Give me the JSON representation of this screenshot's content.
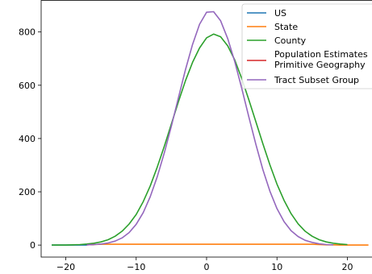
{
  "chart_data": {
    "type": "line",
    "title": "",
    "xlabel": "",
    "ylabel": "",
    "xlim": [
      -23.5,
      23.5
    ],
    "ylim": [
      -45,
      920
    ],
    "xticks": [
      -20,
      -10,
      0,
      10,
      20
    ],
    "yticks": [
      0,
      200,
      400,
      600,
      800
    ],
    "xtick_labels": [
      "−20",
      "−10",
      "0",
      "10",
      "20"
    ],
    "ytick_labels": [
      "0",
      "200",
      "400",
      "600",
      "800"
    ],
    "grid": false,
    "legend_position": "top-right",
    "series": [
      {
        "name": "US",
        "color": "#1f77b4",
        "x": [
          -22,
          -17
        ],
        "y": [
          0,
          0
        ]
      },
      {
        "name": "State",
        "color": "#ff7f0e",
        "x": [
          -17,
          -16,
          -15,
          15,
          16,
          17,
          18,
          19,
          20,
          21,
          22,
          23
        ],
        "y": [
          1,
          2,
          3,
          3,
          2,
          1,
          1,
          0,
          0,
          0,
          0,
          0
        ]
      },
      {
        "name": "County",
        "color": "#2ca02c",
        "x": [
          -22,
          -21,
          -20,
          -19,
          -18,
          -17,
          -16,
          -15,
          -14,
          -13,
          -12,
          -11,
          -10,
          -9,
          -8,
          -7,
          -6,
          -5,
          -4,
          -3,
          -2,
          -1,
          0,
          1,
          2,
          3,
          4,
          5,
          6,
          7,
          8,
          9,
          10,
          11,
          12,
          13,
          14,
          15,
          16,
          17,
          18,
          19,
          20
        ],
        "y": [
          0,
          0,
          0,
          1,
          2,
          4,
          7,
          12,
          20,
          33,
          52,
          79,
          115,
          163,
          222,
          293,
          372,
          455,
          538,
          617,
          686,
          740,
          778,
          792,
          782,
          748,
          695,
          625,
          546,
          463,
          380,
          301,
          229,
          168,
          118,
          80,
          52,
          33,
          20,
          12,
          7,
          4,
          2
        ]
      },
      {
        "name": "Population Estimates Primitive Geography",
        "color": "#d62728",
        "x": [
          -17,
          -16
        ],
        "y": [
          1,
          2
        ]
      },
      {
        "name": "Tract Subset Group",
        "color": "#9467bd",
        "x": [
          -17,
          -16,
          -15,
          -14,
          -13,
          -12,
          -11,
          -10,
          -9,
          -8,
          -7,
          -6,
          -5,
          -4,
          -3,
          -2,
          -1,
          0,
          1,
          2,
          3,
          4,
          5,
          6,
          7,
          8,
          9,
          10,
          11,
          12,
          13,
          14,
          15,
          16,
          17,
          18
        ],
        "y": [
          1,
          2,
          4,
          8,
          15,
          27,
          47,
          78,
          122,
          182,
          257,
          347,
          447,
          553,
          658,
          753,
          829,
          874,
          876,
          842,
          775,
          689,
          588,
          482,
          378,
          283,
          202,
          137,
          88,
          54,
          32,
          18,
          10,
          5,
          2,
          1
        ]
      }
    ]
  }
}
